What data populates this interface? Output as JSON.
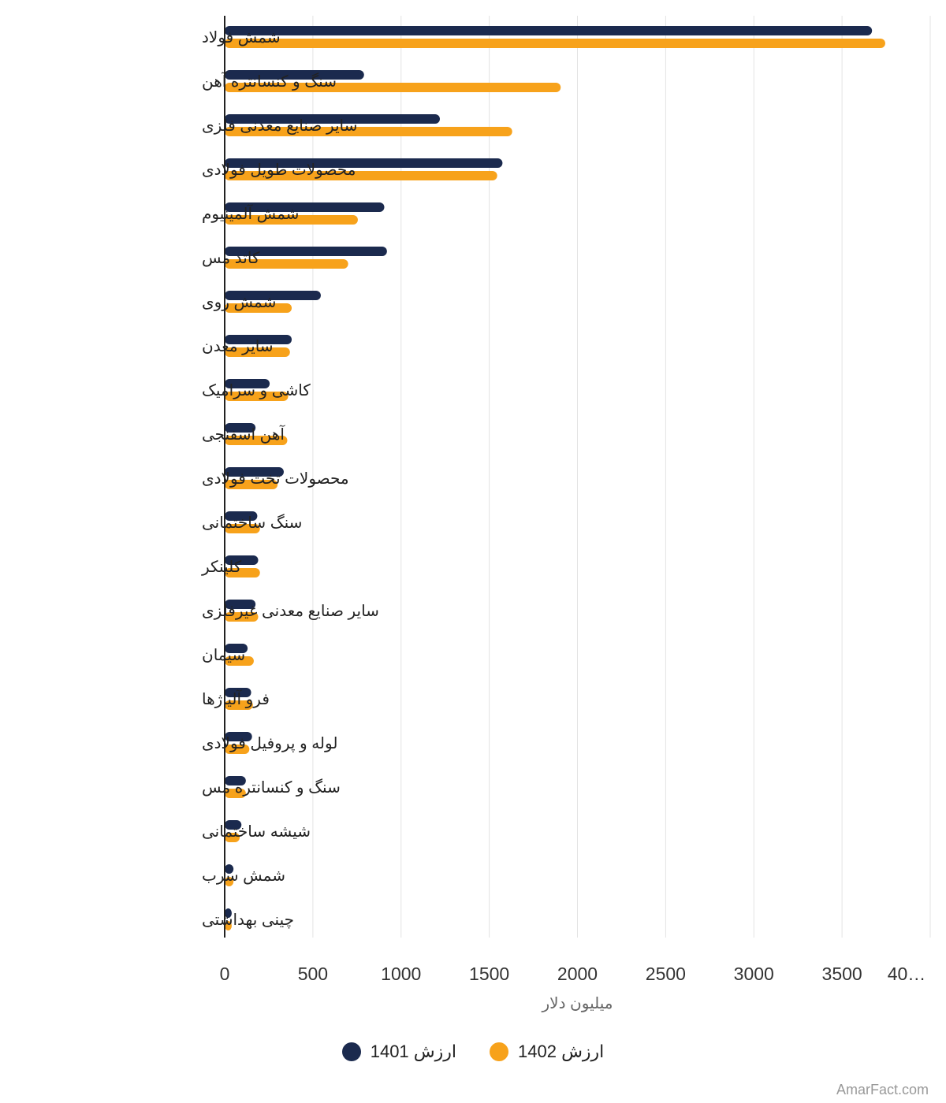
{
  "colors": {
    "series_1401": "#1b2a4e",
    "series_1402": "#f7a21b",
    "grid": "#e3e3e3",
    "axis": "#222222"
  },
  "legend": {
    "item_1401": "ارزش 1401",
    "item_1402": "ارزش 1402"
  },
  "watermark": "AmarFact.com",
  "chart_data": {
    "type": "bar",
    "orientation": "horizontal",
    "categories": [
      "شمش فولاد",
      "سنگ و کنسانتره آهن",
      "سایر صنایع معدنی فلزی",
      "محصولات طویل فولادی",
      "شمش آلمینیوم",
      "کاتد مس",
      "شمش روی",
      "سایر معدن",
      "کاشی و سرامیک",
      "آهن اسفنجی",
      "محصولات تخت فولادی",
      "سنگ ساختمانی",
      "کلینکر",
      "سایر صنایع معدنی غیرفلزی",
      "سیمان",
      "فرو آلیاژها",
      "لوله و پروفیل فولادی",
      "سنگ و کنسانتره مس",
      "شیشه ساختمانی",
      "شمش سرب",
      "چینی بهداشتی"
    ],
    "series": [
      {
        "name": "ارزش 1401",
        "values": [
          3670,
          790,
          1220,
          1575,
          905,
          920,
          545,
          380,
          255,
          175,
          335,
          185,
          190,
          175,
          130,
          150,
          155,
          120,
          95,
          50,
          40
        ]
      },
      {
        "name": "ارزش 1402",
        "values": [
          3745,
          1905,
          1630,
          1545,
          755,
          700,
          380,
          370,
          360,
          355,
          300,
          200,
          200,
          190,
          165,
          160,
          140,
          120,
          85,
          50,
          40
        ]
      }
    ],
    "xlabel": "میلیون دلار",
    "ylabel": "",
    "xlim": [
      0,
      4000
    ],
    "xticks": [
      "0",
      "500",
      "1000",
      "1500",
      "2000",
      "2500",
      "3000",
      "3500",
      "40…"
    ],
    "xtick_values": [
      0,
      500,
      1000,
      1500,
      2000,
      2500,
      3000,
      3500,
      4000
    ],
    "grid": true,
    "legend_position": "bottom-center"
  }
}
